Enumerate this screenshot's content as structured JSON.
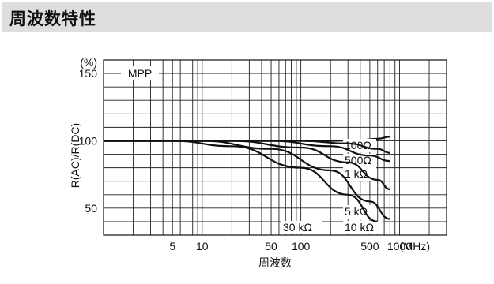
{
  "header": {
    "title": "周波数特性"
  },
  "chart_data": {
    "type": "line",
    "xscale": "log",
    "xlim": [
      1,
      3000
    ],
    "ylim": [
      30,
      160
    ],
    "y_unit": "(%)",
    "ylabel": "R(AC)/R(DC)",
    "x_unit": "(MHz)",
    "xlabel": "周波数",
    "annotation": "MPP",
    "x_ticks": [
      {
        "v": 5,
        "label": "5"
      },
      {
        "v": 10,
        "label": "10"
      },
      {
        "v": 50,
        "label": "50"
      },
      {
        "v": 100,
        "label": "100"
      },
      {
        "v": 500,
        "label": "500"
      },
      {
        "v": 1000,
        "label": "1000"
      }
    ],
    "y_ticks": [
      {
        "v": 150,
        "label": "150"
      },
      {
        "v": 100,
        "label": "100"
      },
      {
        "v": 50,
        "label": "50"
      }
    ],
    "series": [
      {
        "name": "100Ω",
        "x": [
          1,
          200,
          400,
          600,
          800
        ],
        "y": [
          100,
          100,
          100.5,
          101.5,
          103
        ]
      },
      {
        "name": "500Ω",
        "x": [
          1,
          100,
          300,
          600,
          800
        ],
        "y": [
          100,
          100,
          98,
          94,
          91
        ]
      },
      {
        "name": "1 kΩ",
        "x": [
          1,
          50,
          200,
          500,
          800
        ],
        "y": [
          100,
          100,
          96,
          89,
          85
        ]
      },
      {
        "name": "5 kΩ",
        "x": [
          1,
          20,
          100,
          300,
          600,
          800
        ],
        "y": [
          100,
          100,
          95,
          84,
          71,
          64
        ]
      },
      {
        "name": "10 kΩ",
        "x": [
          1,
          10,
          50,
          200,
          500,
          800
        ],
        "y": [
          100,
          100,
          94,
          78,
          55,
          42
        ]
      },
      {
        "name": "30 kΩ",
        "x": [
          1,
          5,
          20,
          100,
          300,
          600
        ],
        "y": [
          100,
          100,
          96,
          80,
          60,
          40
        ]
      }
    ]
  }
}
